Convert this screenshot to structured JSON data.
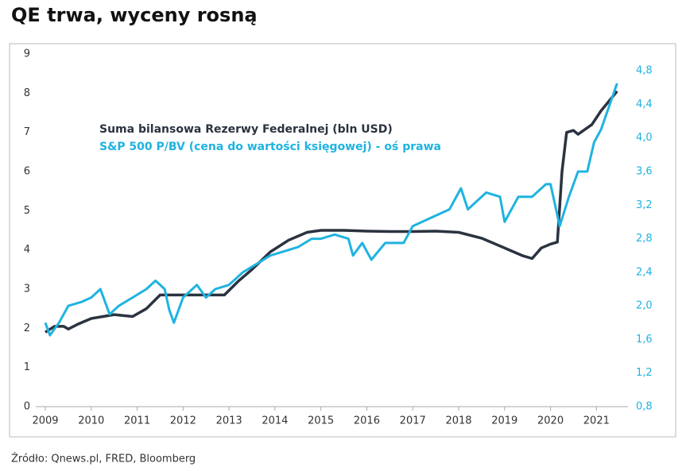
{
  "chart_data": {
    "type": "line",
    "title": "QE trwa, wyceny rosną",
    "source": "Źródło: Qnews.pl, FRED, Bloomberg",
    "xlim": [
      2009,
      2021.6
    ],
    "xticks": [
      2009,
      2010,
      2011,
      2012,
      2013,
      2014,
      2015,
      2016,
      2017,
      2018,
      2019,
      2020,
      2021
    ],
    "ylim": [
      0,
      9
    ],
    "yticks": [
      0,
      1,
      2,
      3,
      4,
      5,
      6,
      7,
      8,
      9
    ],
    "y2lim": [
      0.8,
      5.0
    ],
    "y2ticks": [
      {
        "value": 0.8,
        "label": "0,8"
      },
      {
        "value": 1.2,
        "label": "1,2"
      },
      {
        "value": 1.6,
        "label": "1,6"
      },
      {
        "value": 2.0,
        "label": "2,0"
      },
      {
        "value": 2.4,
        "label": "2,4"
      },
      {
        "value": 2.8,
        "label": "2,8"
      },
      {
        "value": 3.2,
        "label": "3,2"
      },
      {
        "value": 3.6,
        "label": "3,6"
      },
      {
        "value": 4.0,
        "label": "4,0"
      },
      {
        "value": 4.4,
        "label": "4,4"
      },
      {
        "value": 4.8,
        "label": "4,8"
      }
    ],
    "series": [
      {
        "name": "Suma bilansowa Rezerwy Federalnej (bln USD)",
        "color": "#2b3340",
        "x": [
          2009.0,
          2009.2,
          2009.4,
          2009.5,
          2009.7,
          2010.0,
          2010.5,
          2010.9,
          2011.2,
          2011.5,
          2011.8,
          2012.5,
          2012.9,
          2013.2,
          2013.5,
          2013.9,
          2014.3,
          2014.7,
          2015.0,
          2015.5,
          2016.0,
          2016.5,
          2017.0,
          2017.5,
          2018.0,
          2018.5,
          2019.0,
          2019.4,
          2019.6,
          2019.8,
          2020.0,
          2020.15,
          2020.25,
          2020.35,
          2020.5,
          2020.6,
          2020.9,
          2021.1,
          2021.45
        ],
        "values": [
          1.9,
          2.05,
          2.05,
          1.98,
          2.1,
          2.25,
          2.35,
          2.3,
          2.5,
          2.85,
          2.85,
          2.85,
          2.85,
          3.2,
          3.5,
          3.95,
          4.25,
          4.45,
          4.5,
          4.5,
          4.48,
          4.47,
          4.47,
          4.48,
          4.45,
          4.3,
          4.05,
          3.85,
          3.78,
          4.05,
          4.15,
          4.2,
          6.0,
          7.0,
          7.05,
          6.95,
          7.2,
          7.55,
          8.05
        ]
      },
      {
        "name": "S&P 500 P/BV (cena do wartości księgowej) - oś prawa",
        "color": "#1fb3e0",
        "axis": "y2",
        "x": [
          2009.0,
          2009.1,
          2009.3,
          2009.5,
          2009.8,
          2010.0,
          2010.2,
          2010.4,
          2010.6,
          2010.9,
          2011.2,
          2011.4,
          2011.6,
          2011.7,
          2011.8,
          2012.0,
          2012.3,
          2012.5,
          2012.7,
          2013.0,
          2013.3,
          2013.6,
          2013.9,
          2014.2,
          2014.5,
          2014.8,
          2015.0,
          2015.3,
          2015.6,
          2015.7,
          2015.9,
          2016.1,
          2016.4,
          2016.8,
          2017.0,
          2017.4,
          2017.8,
          2018.05,
          2018.2,
          2018.6,
          2018.9,
          2019.0,
          2019.3,
          2019.6,
          2019.9,
          2020.0,
          2020.2,
          2020.4,
          2020.6,
          2020.8,
          2020.95,
          2021.1,
          2021.45
        ],
        "values": [
          1.8,
          1.65,
          1.8,
          2.0,
          2.05,
          2.1,
          2.2,
          1.9,
          2.0,
          2.1,
          2.2,
          2.3,
          2.2,
          1.95,
          1.8,
          2.1,
          2.25,
          2.1,
          2.2,
          2.25,
          2.4,
          2.5,
          2.6,
          2.65,
          2.7,
          2.8,
          2.8,
          2.85,
          2.8,
          2.6,
          2.75,
          2.55,
          2.75,
          2.75,
          2.95,
          3.05,
          3.15,
          3.4,
          3.15,
          3.35,
          3.3,
          3.0,
          3.3,
          3.3,
          3.45,
          3.45,
          2.95,
          3.3,
          3.6,
          3.6,
          3.95,
          4.1,
          4.65
        ]
      }
    ]
  }
}
